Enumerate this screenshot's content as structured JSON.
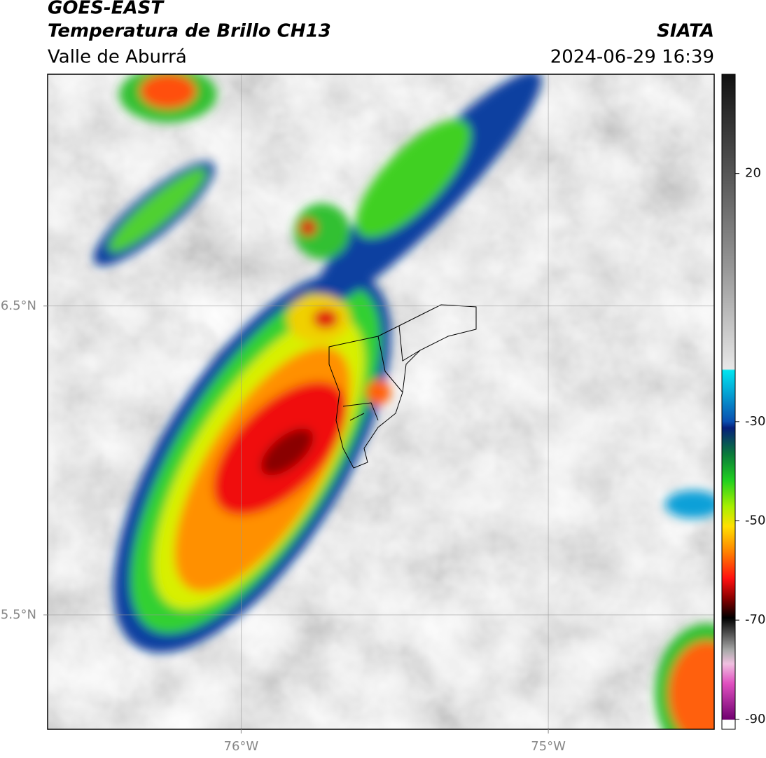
{
  "header": {
    "title": "GOES-EAST",
    "subtitle": "Temperatura de Brillo CH13",
    "region": "Valle de Aburrá",
    "source": "SIATA",
    "datetime": "2024-06-29 16:39"
  },
  "map": {
    "lonlim": [
      -76.63,
      -74.46
    ],
    "latlim": [
      5.13,
      7.25
    ],
    "lonticks": [
      {
        "value": -76,
        "label": "76°W"
      },
      {
        "value": -75,
        "label": "75°W"
      }
    ],
    "latticks": [
      {
        "value": 6.5,
        "label": "6.5°N"
      },
      {
        "value": 5.5,
        "label": "5.5°N"
      }
    ],
    "grid": true
  },
  "colorbar": {
    "lim": [
      -92,
      40
    ],
    "ticks": [
      20,
      -30,
      -50,
      -70,
      -90
    ]
  }
}
